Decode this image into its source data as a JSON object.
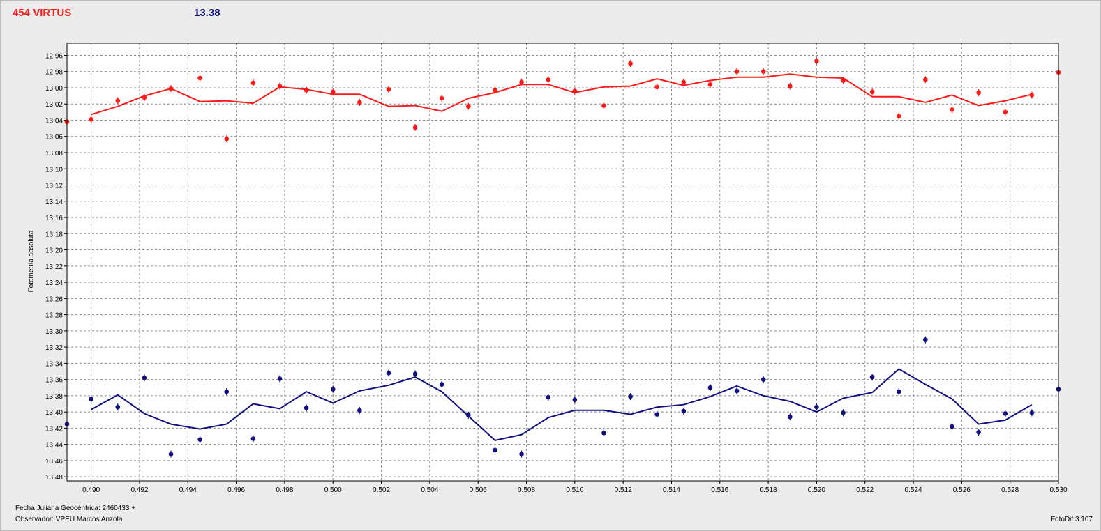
{
  "header": {
    "object_name": "454 VIRTUS",
    "magnitude": "13.38"
  },
  "footer": {
    "xlabel": "Fecha Juliana Geocéntrica: 2460433 +",
    "observer": "Observador: VPEU Marcos Anzola",
    "version": "FotoDif 3.107"
  },
  "chart_data": {
    "type": "scatter",
    "title": "454 VIRTUS",
    "subtitle": "13.38",
    "xlabel": "Fecha Juliana Geocéntrica: 2460433 +",
    "ylabel": "Fotometría absoluta",
    "xlim": [
      0.489,
      0.53
    ],
    "ylim": [
      12.945,
      13.485
    ],
    "y_inverted": true,
    "grid": true,
    "xticks": [
      "0.490",
      "0.492",
      "0.494",
      "0.496",
      "0.498",
      "0.500",
      "0.502",
      "0.504",
      "0.506",
      "0.508",
      "0.510",
      "0.512",
      "0.514",
      "0.516",
      "0.518",
      "0.520",
      "0.522",
      "0.524",
      "0.526",
      "0.528",
      "0.530"
    ],
    "yticks": [
      "12.96",
      "12.98",
      "13.00",
      "13.02",
      "13.04",
      "13.06",
      "13.08",
      "13.10",
      "13.12",
      "13.14",
      "13.16",
      "13.18",
      "13.20",
      "13.22",
      "13.24",
      "13.26",
      "13.28",
      "13.30",
      "13.32",
      "13.34",
      "13.36",
      "13.38",
      "13.40",
      "13.42",
      "13.44",
      "13.46",
      "13.48"
    ],
    "colors": {
      "series1": "#ff1a1a",
      "series2": "#101080"
    },
    "series": [
      {
        "mode": "markers",
        "color": "#ff1a1a",
        "x": [
          0.489,
          0.49,
          0.4911,
          0.4922,
          0.4933,
          0.4945,
          0.4956,
          0.4967,
          0.4978,
          0.4989,
          0.5,
          0.5011,
          0.5023,
          0.5034,
          0.5045,
          0.5056,
          0.5067,
          0.5078,
          0.5089,
          0.51,
          0.5112,
          0.5123,
          0.5134,
          0.5145,
          0.5156,
          0.5167,
          0.5178,
          0.5189,
          0.52,
          0.5211,
          0.5223,
          0.5234,
          0.5245,
          0.5256,
          0.5267,
          0.5278,
          0.5289,
          0.53
        ],
        "y": [
          13.042,
          13.039,
          13.016,
          13.012,
          13.001,
          12.988,
          13.063,
          12.994,
          12.998,
          13.003,
          13.005,
          13.018,
          13.002,
          13.049,
          13.013,
          13.023,
          13.003,
          12.993,
          12.99,
          13.004,
          13.022,
          12.97,
          12.999,
          12.993,
          12.996,
          12.98,
          12.98,
          12.998,
          12.967,
          12.991,
          13.005,
          13.035,
          12.99,
          13.027,
          13.006,
          13.03,
          13.009,
          12.981
        ]
      },
      {
        "mode": "line",
        "color": "#ff1a1a",
        "x": [
          0.49,
          0.4911,
          0.4922,
          0.4933,
          0.4945,
          0.4956,
          0.4967,
          0.4978,
          0.4989,
          0.5,
          0.5011,
          0.5023,
          0.5034,
          0.5045,
          0.5056,
          0.5067,
          0.5078,
          0.5089,
          0.51,
          0.5112,
          0.5123,
          0.5134,
          0.5145,
          0.5156,
          0.5167,
          0.5178,
          0.5189,
          0.52,
          0.5211,
          0.5223,
          0.5234,
          0.5245,
          0.5256,
          0.5267,
          0.5278,
          0.5289
        ],
        "y": [
          13.033,
          13.023,
          13.01,
          13.001,
          13.017,
          13.016,
          13.019,
          12.999,
          13.002,
          13.008,
          13.008,
          13.023,
          13.022,
          13.029,
          13.013,
          13.006,
          12.996,
          12.996,
          13.006,
          12.999,
          12.998,
          12.989,
          12.997,
          12.991,
          12.987,
          12.987,
          12.983,
          12.987,
          12.988,
          13.011,
          13.011,
          13.018,
          13.009,
          13.022,
          13.016,
          13.008
        ]
      },
      {
        "mode": "markers",
        "color": "#101080",
        "x": [
          0.489,
          0.49,
          0.4911,
          0.4922,
          0.4933,
          0.4945,
          0.4956,
          0.4967,
          0.4978,
          0.4989,
          0.5,
          0.5011,
          0.5023,
          0.5034,
          0.5045,
          0.5056,
          0.5067,
          0.5078,
          0.5089,
          0.51,
          0.5112,
          0.5123,
          0.5134,
          0.5145,
          0.5156,
          0.5167,
          0.5178,
          0.5189,
          0.52,
          0.5211,
          0.5223,
          0.5234,
          0.5245,
          0.5256,
          0.5267,
          0.5278,
          0.5289,
          0.53
        ],
        "y": [
          13.415,
          13.384,
          13.394,
          13.358,
          13.452,
          13.434,
          13.375,
          13.433,
          13.359,
          13.395,
          13.372,
          13.398,
          13.352,
          13.353,
          13.366,
          13.404,
          13.447,
          13.452,
          13.382,
          13.385,
          13.426,
          13.381,
          13.403,
          13.399,
          13.37,
          13.374,
          13.36,
          13.406,
          13.394,
          13.401,
          13.357,
          13.375,
          13.311,
          13.418,
          13.425,
          13.402,
          13.401,
          13.372
        ]
      },
      {
        "mode": "line",
        "color": "#101080",
        "x": [
          0.49,
          0.4911,
          0.4922,
          0.4933,
          0.4945,
          0.4956,
          0.4967,
          0.4978,
          0.4989,
          0.5,
          0.5011,
          0.5023,
          0.5034,
          0.5045,
          0.5056,
          0.5067,
          0.5078,
          0.5089,
          0.51,
          0.5112,
          0.5123,
          0.5134,
          0.5145,
          0.5156,
          0.5167,
          0.5178,
          0.5189,
          0.52,
          0.5211,
          0.5223,
          0.5234,
          0.5245,
          0.5256,
          0.5267,
          0.5278,
          0.5289
        ],
        "y": [
          13.397,
          13.379,
          13.402,
          13.415,
          13.421,
          13.415,
          13.39,
          13.396,
          13.375,
          13.389,
          13.374,
          13.367,
          13.357,
          13.375,
          13.405,
          13.435,
          13.428,
          13.407,
          13.398,
          13.398,
          13.403,
          13.394,
          13.391,
          13.381,
          13.368,
          13.38,
          13.387,
          13.4,
          13.383,
          13.376,
          13.347,
          13.366,
          13.384,
          13.415,
          13.41,
          13.391
        ]
      }
    ]
  }
}
